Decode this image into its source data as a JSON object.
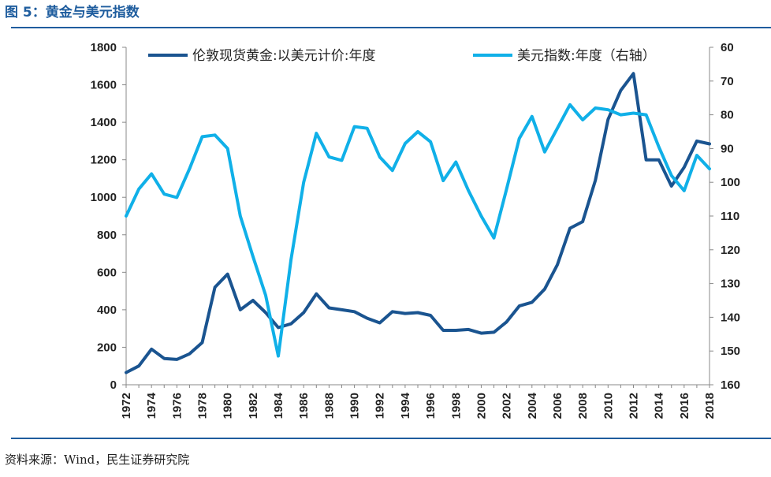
{
  "figure": {
    "title": "图 5：黄金与美元指数",
    "source": "资料来源：Wind，民生证券研究院"
  },
  "chart_data": {
    "type": "line",
    "x": [
      1972,
      1973,
      1974,
      1975,
      1976,
      1977,
      1978,
      1979,
      1980,
      1981,
      1982,
      1983,
      1984,
      1985,
      1986,
      1987,
      1988,
      1989,
      1990,
      1991,
      1992,
      1993,
      1994,
      1995,
      1996,
      1997,
      1998,
      1999,
      2000,
      2001,
      2002,
      2003,
      2004,
      2005,
      2006,
      2007,
      2008,
      2009,
      2010,
      2011,
      2012,
      2013,
      2014,
      2015,
      2016,
      2017,
      2018
    ],
    "x_ticks": [
      "1972",
      "1974",
      "1976",
      "1978",
      "1980",
      "1982",
      "1984",
      "1986",
      "1988",
      "1990",
      "1992",
      "1994",
      "1996",
      "1998",
      "2000",
      "2002",
      "2004",
      "2006",
      "2008",
      "2010",
      "2012",
      "2014",
      "2016",
      "2018"
    ],
    "y_left": {
      "lim": [
        0,
        1800
      ],
      "ticks": [
        "0",
        "200",
        "400",
        "600",
        "800",
        "1000",
        "1200",
        "1400",
        "1600",
        "1800"
      ]
    },
    "y_right": {
      "lim": [
        60,
        160
      ],
      "inverted": true,
      "ticks": [
        "60",
        "70",
        "80",
        "90",
        "100",
        "110",
        "120",
        "130",
        "140",
        "150",
        "160"
      ]
    },
    "grid": false,
    "legend_position": "top",
    "series": [
      {
        "name": "伦敦现货黄金:以美元计价:年度",
        "axis": "left",
        "color": "#1a5490",
        "values": [
          65,
          100,
          190,
          140,
          135,
          165,
          225,
          520,
          590,
          400,
          450,
          385,
          305,
          325,
          385,
          485,
          410,
          400,
          390,
          355,
          330,
          390,
          380,
          385,
          370,
          290,
          290,
          295,
          275,
          280,
          335,
          420,
          440,
          510,
          640,
          835,
          870,
          1090,
          1415,
          1570,
          1660,
          1200,
          1200,
          1060,
          1160,
          1300,
          1285
        ]
      },
      {
        "name": "美元指数:年度（右轴）",
        "axis": "right",
        "color": "#10b0e8",
        "values": [
          110,
          102,
          97.5,
          103.5,
          104.5,
          96,
          86.5,
          86,
          90,
          110,
          122,
          133.5,
          151.5,
          123,
          100,
          85.5,
          92.5,
          93.5,
          83.5,
          84,
          92.5,
          96.5,
          88.5,
          85,
          88,
          99.5,
          94,
          102.5,
          110,
          116.5,
          102,
          87,
          80.5,
          91,
          84,
          77,
          81.5,
          78,
          78.5,
          80,
          79.5,
          80,
          89.5,
          98,
          102.5,
          92,
          96
        ]
      }
    ]
  }
}
